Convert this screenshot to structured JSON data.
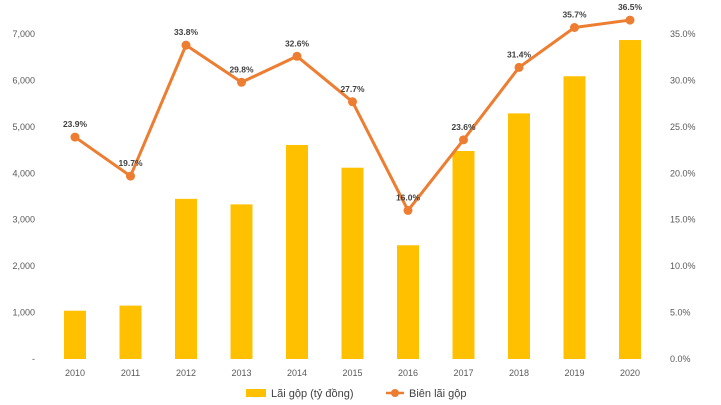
{
  "chart_data": {
    "type": "bar+line",
    "categories": [
      "2010",
      "2011",
      "2012",
      "2013",
      "2014",
      "2015",
      "2016",
      "2017",
      "2018",
      "2019",
      "2020"
    ],
    "series": [
      {
        "name": "Lãi gộp (tỷ đồng)",
        "type": "bar",
        "axis": "left",
        "color": "#FFC000",
        "values": [
          1040,
          1150,
          3450,
          3330,
          4610,
          4120,
          2450,
          4480,
          5290,
          6090,
          6870
        ]
      },
      {
        "name": "Biên lãi gộp",
        "type": "line",
        "axis": "right",
        "color": "#ED7D31",
        "values": [
          23.9,
          19.7,
          33.8,
          29.8,
          32.6,
          27.7,
          16.0,
          23.6,
          31.4,
          35.7,
          36.5
        ],
        "labels": [
          "23.9%",
          "19.7%",
          "33.8%",
          "29.8%",
          "32.6%",
          "27.7%",
          "16.0%",
          "23.6%",
          "31.4%",
          "35.7%",
          "36.5%"
        ]
      }
    ],
    "y_left": {
      "range": [
        0,
        7000
      ],
      "ticks": [
        0,
        1000,
        2000,
        3000,
        4000,
        5000,
        6000,
        7000
      ],
      "tick_labels": [
        "-",
        "1,000",
        "2,000",
        "3,000",
        "4,000",
        "5,000",
        "6,000",
        "7,000"
      ]
    },
    "y_right": {
      "range": [
        0,
        35
      ],
      "ticks": [
        0,
        5,
        10,
        15,
        20,
        25,
        30,
        35
      ],
      "tick_labels": [
        "0.0%",
        "5.0%",
        "10.0%",
        "15.0%",
        "20.0%",
        "25.0%",
        "30.0%",
        "35.0%"
      ]
    },
    "grid": false,
    "legend_position": "bottom-center",
    "title": "",
    "xlabel": "",
    "ylabel": ""
  }
}
